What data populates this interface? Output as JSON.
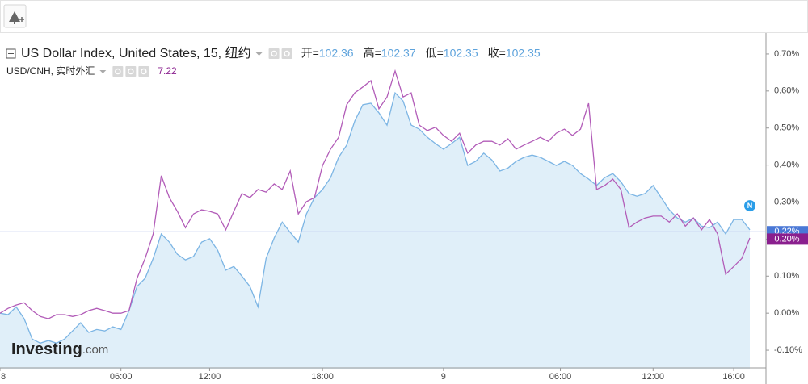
{
  "chart_data": {
    "type": "line",
    "series": [
      {
        "name": "US Dollar Index, United States, 15, 纽约",
        "color": "#7cb5e4",
        "fill": "#e0eff9",
        "stats": [
          {
            "label": "开=",
            "value": 102.36
          },
          {
            "label": "高=",
            "value": 102.37
          },
          {
            "label": "低=",
            "value": 102.35
          },
          {
            "label": "收=",
            "value": 102.35
          }
        ],
        "last_badge": {
          "value": 0.22,
          "label": "0.22%"
        },
        "badge_color": "#4a78d6",
        "values": [
          0.0,
          -0.004,
          0.017,
          -0.015,
          -0.07,
          -0.081,
          -0.074,
          -0.081,
          -0.07,
          -0.048,
          -0.026,
          -0.052,
          -0.044,
          -0.048,
          -0.037,
          -0.044,
          0.007,
          0.072,
          0.094,
          0.148,
          0.214,
          0.192,
          0.159,
          0.144,
          0.153,
          0.192,
          0.201,
          0.17,
          0.116,
          0.126,
          0.1,
          0.072,
          0.017,
          0.148,
          0.203,
          0.246,
          0.218,
          0.192,
          0.268,
          0.312,
          0.334,
          0.366,
          0.421,
          0.454,
          0.519,
          0.563,
          0.567,
          0.541,
          0.508,
          0.595,
          0.573,
          0.508,
          0.497,
          0.475,
          0.458,
          0.443,
          0.458,
          0.475,
          0.399,
          0.41,
          0.432,
          0.414,
          0.384,
          0.392,
          0.41,
          0.421,
          0.427,
          0.421,
          0.41,
          0.399,
          0.41,
          0.399,
          0.377,
          0.362,
          0.345,
          0.366,
          0.377,
          0.355,
          0.323,
          0.316,
          0.323,
          0.345,
          0.312,
          0.279,
          0.257,
          0.246,
          0.257,
          0.235,
          0.231,
          0.246,
          0.214,
          0.253,
          0.253,
          0.225
        ]
      },
      {
        "name": "USD/CNH, 实时外汇",
        "color": "#b25cb8",
        "last_value": 7.22,
        "last_badge": {
          "value": 0.2,
          "label": "0.20%"
        },
        "badge_color": "#8a1f8e",
        "values": [
          0.0,
          0.013,
          0.022,
          0.028,
          0.007,
          -0.009,
          -0.015,
          -0.004,
          -0.004,
          -0.009,
          -0.004,
          0.007,
          0.013,
          0.007,
          0.0,
          0.0,
          0.007,
          0.094,
          0.148,
          0.214,
          0.371,
          0.312,
          0.275,
          0.231,
          0.268,
          0.279,
          0.275,
          0.268,
          0.225,
          0.275,
          0.323,
          0.312,
          0.334,
          0.327,
          0.349,
          0.334,
          0.384,
          0.268,
          0.301,
          0.312,
          0.399,
          0.443,
          0.475,
          0.563,
          0.595,
          0.611,
          0.628,
          0.552,
          0.584,
          0.654,
          0.584,
          0.595,
          0.508,
          0.493,
          0.502,
          0.48,
          0.464,
          0.486,
          0.432,
          0.454,
          0.464,
          0.464,
          0.454,
          0.471,
          0.443,
          0.454,
          0.464,
          0.475,
          0.464,
          0.486,
          0.497,
          0.48,
          0.497,
          0.567,
          0.334,
          0.345,
          0.362,
          0.334,
          0.231,
          0.246,
          0.257,
          0.262,
          0.262,
          0.246,
          0.268,
          0.235,
          0.257,
          0.225,
          0.253,
          0.214,
          0.105,
          0.126,
          0.148,
          0.203
        ]
      }
    ],
    "xlim": [
      0,
      95
    ],
    "xticks": [
      {
        "value": 0,
        "label": "8"
      },
      {
        "value": 15,
        "label": "06:00"
      },
      {
        "value": 26,
        "label": "12:00"
      },
      {
        "value": 40,
        "label": "18:00"
      },
      {
        "value": 55,
        "label": "9"
      },
      {
        "value": 69.5,
        "label": "06:00"
      },
      {
        "value": 81,
        "label": "12:00"
      },
      {
        "value": 91,
        "label": "16:00"
      }
    ],
    "ylim": [
      -0.15,
      0.75
    ],
    "yticks": [
      {
        "value": -0.1,
        "label": "-0.10%"
      },
      {
        "value": 0,
        "label": "0.00%"
      },
      {
        "value": 0.1,
        "label": "0.10%"
      },
      {
        "value": 0.2,
        "label": "0.20%"
      },
      {
        "value": 0.3,
        "label": "0.30%"
      },
      {
        "value": 0.4,
        "label": "0.40%"
      },
      {
        "value": 0.5,
        "label": "0.50%"
      },
      {
        "value": 0.6,
        "label": "0.60%"
      },
      {
        "value": 0.7,
        "label": "0.70%"
      }
    ],
    "grid": false,
    "annotations": [
      {
        "text": "N",
        "x": 93,
        "y": 0.29
      }
    ],
    "watermark": [
      "Investing",
      ".com"
    ]
  }
}
